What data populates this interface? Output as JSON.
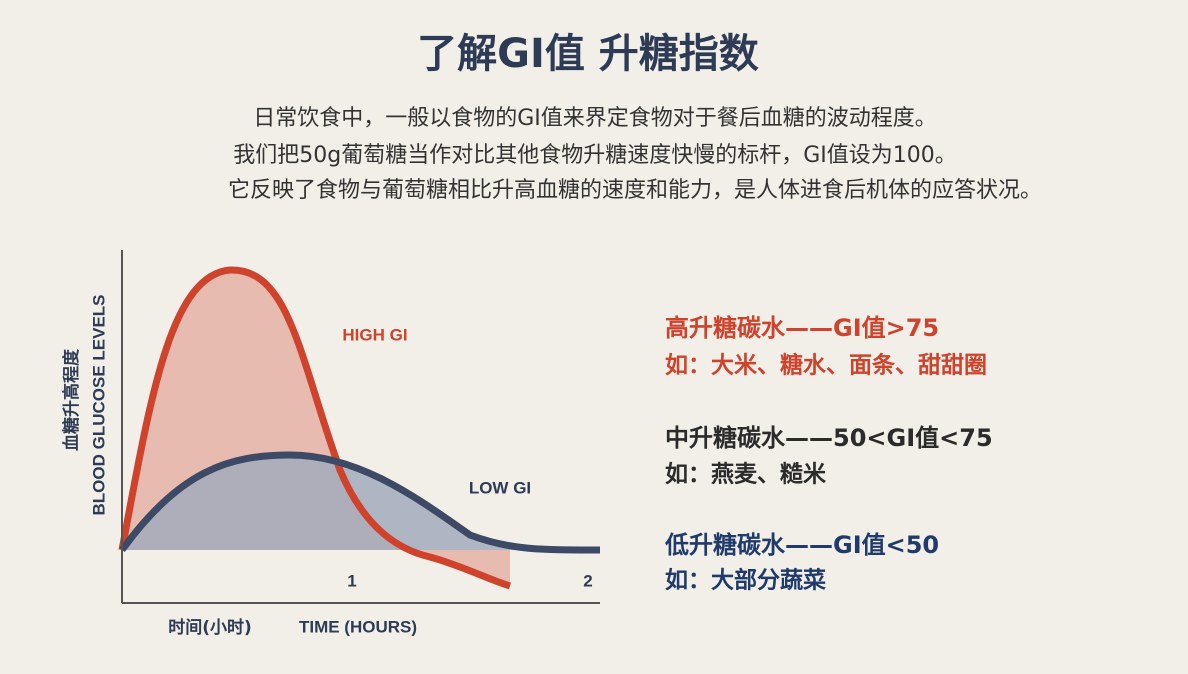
{
  "header": {
    "title": "了解GI值 升糖指数",
    "lines": [
      "日常饮食中，一般以食物的GI值来界定食物对于餐后血糖的波动程度。",
      "我们把50g葡萄糖当作对比其他食物升糖速度快慢的标杆，GI值设为100。",
      "它反映了食物与葡萄糖相比升高血糖的速度和能力，是人体进食后机体的应答状况。"
    ]
  },
  "graph": {
    "y_label_cn": "血糖升高程度",
    "y_label_en": "BLOOD GLUCOSE LEVELS",
    "curves": [
      "HIGH GI",
      "LOW GI"
    ],
    "x_ticks": [
      "1",
      "2"
    ],
    "x_label_cn": "时间(小时)",
    "x_label_en": "TIME (HOURS)"
  },
  "legend": [
    {
      "title": "高升糖碳水——GI值>75",
      "examples": "如：大米、糖水、面条、甜甜圈"
    },
    {
      "title": "中升糖碳水——50<GI值<75",
      "examples": "如：燕麦、糙米"
    },
    {
      "title": "低升糖碳水——GI值<50",
      "examples": "如：大部分蔬菜"
    }
  ]
}
